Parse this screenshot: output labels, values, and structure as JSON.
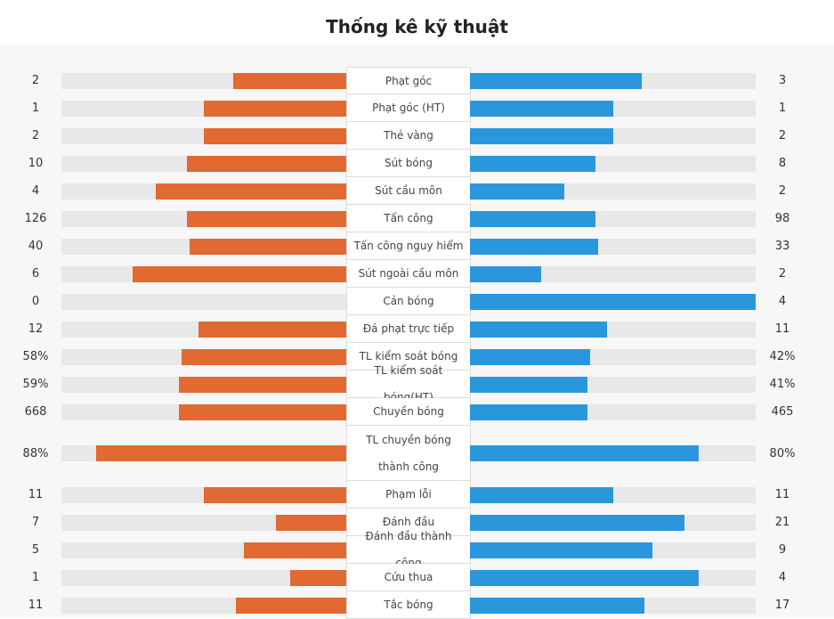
{
  "title": "Thống kê kỹ thuật",
  "colors": {
    "home": "#e06a32",
    "away": "#2a97dd",
    "track": "#e8e8e8"
  },
  "stats": [
    {
      "label": "Phạt góc",
      "home": "2",
      "away": "3",
      "home_frac": 0.4,
      "away_frac": 0.6
    },
    {
      "label": "Phạt góc (HT)",
      "home": "1",
      "away": "1",
      "home_frac": 0.5,
      "away_frac": 0.5
    },
    {
      "label": "Thẻ vàng",
      "home": "2",
      "away": "2",
      "home_frac": 0.5,
      "away_frac": 0.5
    },
    {
      "label": "Sút bóng",
      "home": "10",
      "away": "8",
      "home_frac": 0.56,
      "away_frac": 0.44
    },
    {
      "label": "Sút cầu môn",
      "home": "4",
      "away": "2",
      "home_frac": 0.67,
      "away_frac": 0.33
    },
    {
      "label": "Tấn công",
      "home": "126",
      "away": "98",
      "home_frac": 0.56,
      "away_frac": 0.44
    },
    {
      "label": "Tấn công nguy hiểm",
      "home": "40",
      "away": "33",
      "home_frac": 0.55,
      "away_frac": 0.45
    },
    {
      "label": "Sút ngoài cầu môn",
      "home": "6",
      "away": "2",
      "home_frac": 0.75,
      "away_frac": 0.25
    },
    {
      "label": "Cản bóng",
      "home": "0",
      "away": "4",
      "home_frac": 0.0,
      "away_frac": 1.0
    },
    {
      "label": "Đá phạt trực tiếp",
      "home": "12",
      "away": "11",
      "home_frac": 0.52,
      "away_frac": 0.48
    },
    {
      "label": "TL kiểm soát bóng",
      "home": "58%",
      "away": "42%",
      "home_frac": 0.58,
      "away_frac": 0.42
    },
    {
      "label": "TL kiểm soát bóng(HT)",
      "home": "59%",
      "away": "41%",
      "home_frac": 0.59,
      "away_frac": 0.41
    },
    {
      "label": "Chuyền bóng",
      "home": "668",
      "away": "465",
      "home_frac": 0.59,
      "away_frac": 0.41
    },
    {
      "label": "TL chuyền bóng thành công",
      "home": "88%",
      "away": "80%",
      "home_frac": 0.88,
      "away_frac": 0.8
    },
    {
      "label": "Phạm lỗi",
      "home": "11",
      "away": "11",
      "home_frac": 0.5,
      "away_frac": 0.5
    },
    {
      "label": "Đánh đầu",
      "home": "7",
      "away": "21",
      "home_frac": 0.25,
      "away_frac": 0.75
    },
    {
      "label": "Đánh đầu thành công",
      "home": "5",
      "away": "9",
      "home_frac": 0.36,
      "away_frac": 0.64
    },
    {
      "label": "Cứu thua",
      "home": "1",
      "away": "4",
      "home_frac": 0.2,
      "away_frac": 0.8
    },
    {
      "label": "Tắc bóng",
      "home": "11",
      "away": "17",
      "home_frac": 0.39,
      "away_frac": 0.61
    }
  ]
}
